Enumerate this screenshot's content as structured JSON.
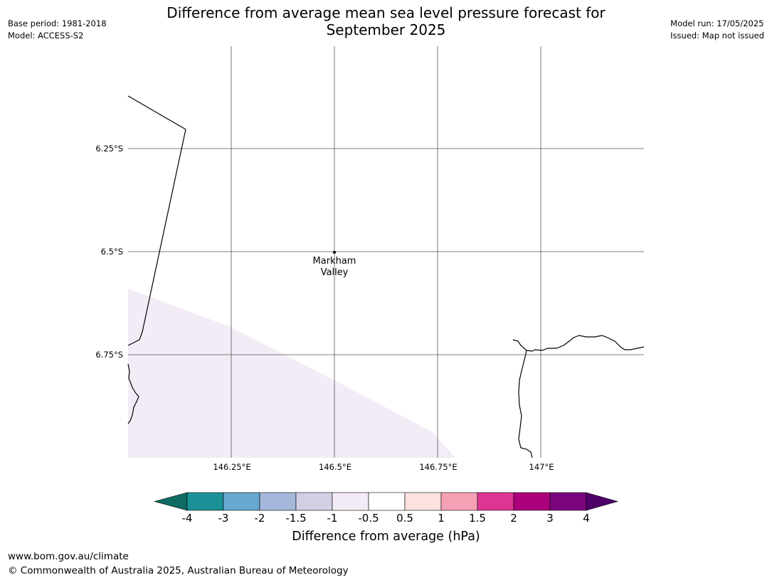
{
  "title_line1": "Difference from average mean sea level pressure forecast for",
  "title_line2": "September 2025",
  "meta_left": {
    "base_period": "Base period: 1981-2018",
    "model": "Model: ACCESS-S2"
  },
  "meta_right": {
    "model_run": "Model run: 17/05/2025",
    "issued": "Issued: Map not issued"
  },
  "latitude_labels": [
    "6.25°S",
    "6.5°S",
    "6.75°S"
  ],
  "longitude_labels": [
    "146.25°E",
    "146.5°E",
    "146.75°E",
    "147°E"
  ],
  "place": {
    "line1": "Markham",
    "line2": "Valley"
  },
  "colorbar": {
    "title": "Difference from average (hPa)",
    "tick_labels": [
      "-4",
      "-3",
      "-2",
      "-1.5",
      "-1",
      "-0.5",
      "0.5",
      "1",
      "1.5",
      "2",
      "3",
      "4"
    ],
    "colors": {
      "below_min": "#0e6b63",
      "bins": [
        "#1b9198",
        "#67a8d0",
        "#a5b8db",
        "#d3cfe5",
        "#f3ebf6",
        "#ffffff",
        "#fde0e0",
        "#f6a0b6",
        "#dd3594",
        "#ac017c",
        "#7b047c"
      ],
      "above_max": "#4d0068"
    }
  },
  "shaded_region_color": "#f3ebf6",
  "footer": {
    "url": "www.bom.gov.au/climate",
    "copyright": "© Commonwealth of Australia 2025, Australian Bureau of Meteorology"
  }
}
